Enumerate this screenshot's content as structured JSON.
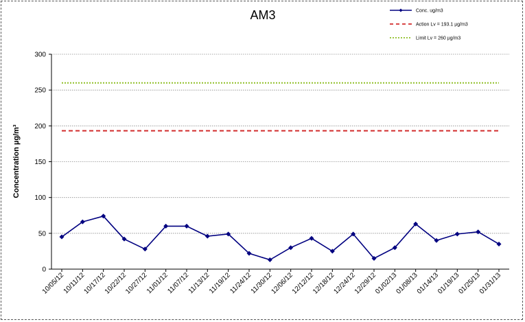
{
  "chart_data": {
    "type": "line",
    "title": "AM3",
    "xlabel": "",
    "ylabel": "Concentration  µg/m³",
    "ylim": [
      0,
      300
    ],
    "yticks": [
      0,
      50,
      100,
      150,
      200,
      250,
      300
    ],
    "grid": "horizontal dotted",
    "legend_position": "top-right",
    "categories": [
      "10/05/12",
      "10/11/12",
      "10/17/12",
      "10/22/12",
      "10/27/12",
      "11/01/12",
      "11/07/12",
      "11/13/12",
      "11/19/12",
      "11/24/12",
      "11/30/12",
      "12/06/12",
      "12/12/12",
      "12/18/12",
      "12/24/12",
      "12/29/12",
      "01/02/13",
      "01/08/13",
      "01/14/13",
      "01/19/13",
      "01/25/13",
      "01/31/13"
    ],
    "series": [
      {
        "name": "Conc. ug/m3",
        "style": "solid-diamond",
        "color": "#000080",
        "values": [
          45,
          66,
          74,
          42,
          28,
          60,
          60,
          46,
          49,
          22,
          13,
          30,
          43,
          25,
          49,
          15,
          30,
          63,
          40,
          49,
          52,
          35
        ]
      },
      {
        "name": "Action Lv = 193.1 µg/m3",
        "style": "dashed",
        "color": "#d22b2b",
        "constant": 193.1
      },
      {
        "name": "Limit Lv = 260 µg/m3",
        "style": "dotted",
        "color": "#8fbf26",
        "constant": 260
      }
    ]
  }
}
